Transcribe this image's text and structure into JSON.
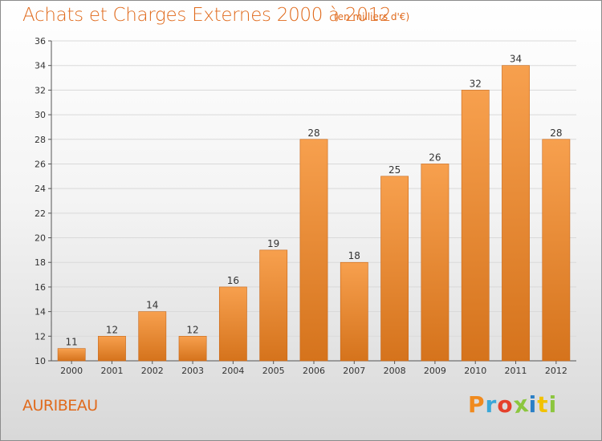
{
  "chart_data": {
    "type": "bar",
    "title": "Achats et Charges Externes 2000 à 2012",
    "subtitle": "(en milliers d'€)",
    "categories": [
      "2000",
      "2001",
      "2002",
      "2003",
      "2004",
      "2005",
      "2006",
      "2007",
      "2008",
      "2009",
      "2010",
      "2011",
      "2012"
    ],
    "values": [
      11,
      12,
      14,
      12,
      16,
      19,
      28,
      18,
      25,
      26,
      32,
      34,
      28
    ],
    "xlabel": "",
    "ylabel": "",
    "ylim": [
      10,
      36
    ],
    "yticks": [
      10,
      12,
      14,
      16,
      18,
      20,
      22,
      24,
      26,
      28,
      30,
      32,
      34,
      36
    ],
    "grid": true,
    "legend": "none",
    "colors": {
      "bar_light": "#f7a04e",
      "bar_dark": "#d5731c",
      "bar_edge": "#c8681a",
      "text_accent": "#e06a1c",
      "grid": "#d9d9d9"
    }
  },
  "footer": {
    "place": "AURIBEAU",
    "logo_text": "Proxiti",
    "logo_colors": [
      "#f08a1e",
      "#3aa7d8",
      "#e5402b",
      "#8cc63e",
      "#2a7fc6",
      "#f2c200",
      "#8cc63e"
    ]
  }
}
